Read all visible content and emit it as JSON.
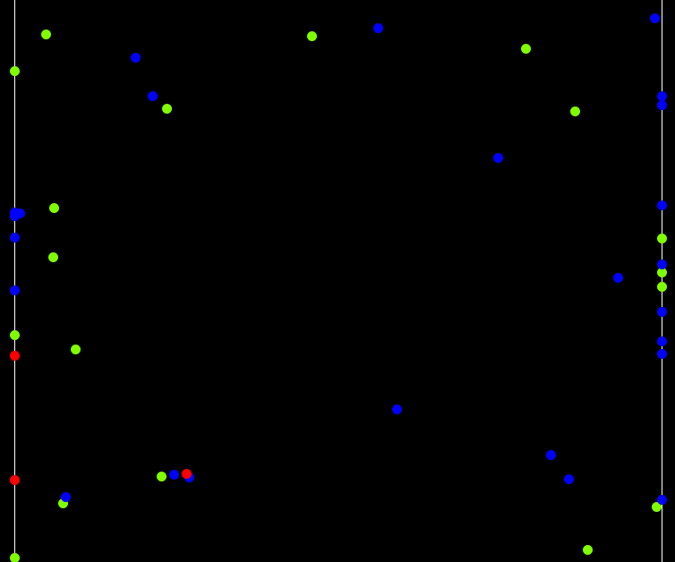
{
  "colors": {
    "background": "#000000",
    "wall": "#ffffff",
    "green": "#80ff00",
    "blue": "#0000ff",
    "red": "#ff0000"
  },
  "entity_types": [
    "green",
    "blue",
    "red"
  ]
}
